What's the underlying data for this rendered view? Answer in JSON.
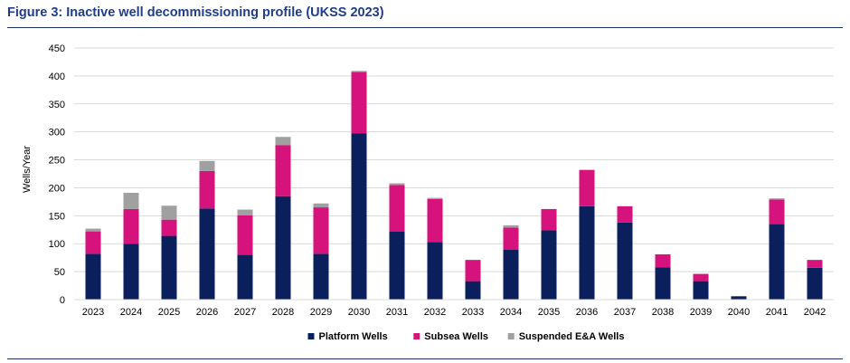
{
  "figure": {
    "title": "Figure 3: Inactive well decommissioning profile (UKSS 2023)"
  },
  "colors": {
    "title": "#1f3d8a",
    "rule": "#1a2f63",
    "platform": "#0b1f5c",
    "subsea": "#d6127d",
    "suspended": "#a0a0a0",
    "gridline": "#d9d9d9",
    "axis_text": "#000000"
  },
  "chart_data": {
    "type": "bar",
    "stacked": true,
    "categories": [
      "2023",
      "2024",
      "2025",
      "2026",
      "2027",
      "2028",
      "2029",
      "2030",
      "2031",
      "2032",
      "2033",
      "2034",
      "2035",
      "2036",
      "2037",
      "2038",
      "2039",
      "2040",
      "2041",
      "2042"
    ],
    "series": [
      {
        "name": "Platform Wells",
        "color": "#0b1f5c",
        "values": [
          82,
          100,
          114,
          163,
          80,
          185,
          82,
          297,
          122,
          103,
          33,
          89,
          124,
          167,
          138,
          58,
          33,
          6,
          135,
          57
        ]
      },
      {
        "name": "Subsea Wells",
        "color": "#d6127d",
        "values": [
          40,
          62,
          29,
          67,
          71,
          91,
          83,
          110,
          83,
          77,
          38,
          40,
          38,
          65,
          29,
          23,
          13,
          0,
          44,
          14
        ]
      },
      {
        "name": "Suspended E&A Wells",
        "color": "#a0a0a0",
        "values": [
          5,
          29,
          25,
          18,
          10,
          15,
          7,
          2,
          3,
          2,
          0,
          4,
          0,
          0,
          0,
          0,
          0,
          0,
          2,
          0
        ]
      }
    ],
    "ylabel": "Wells/Year",
    "xlabel": "",
    "ylim": [
      0,
      450
    ],
    "yticks": [
      0,
      50,
      100,
      150,
      200,
      250,
      300,
      350,
      400,
      450
    ],
    "grid": true,
    "legend_position": "bottom"
  }
}
